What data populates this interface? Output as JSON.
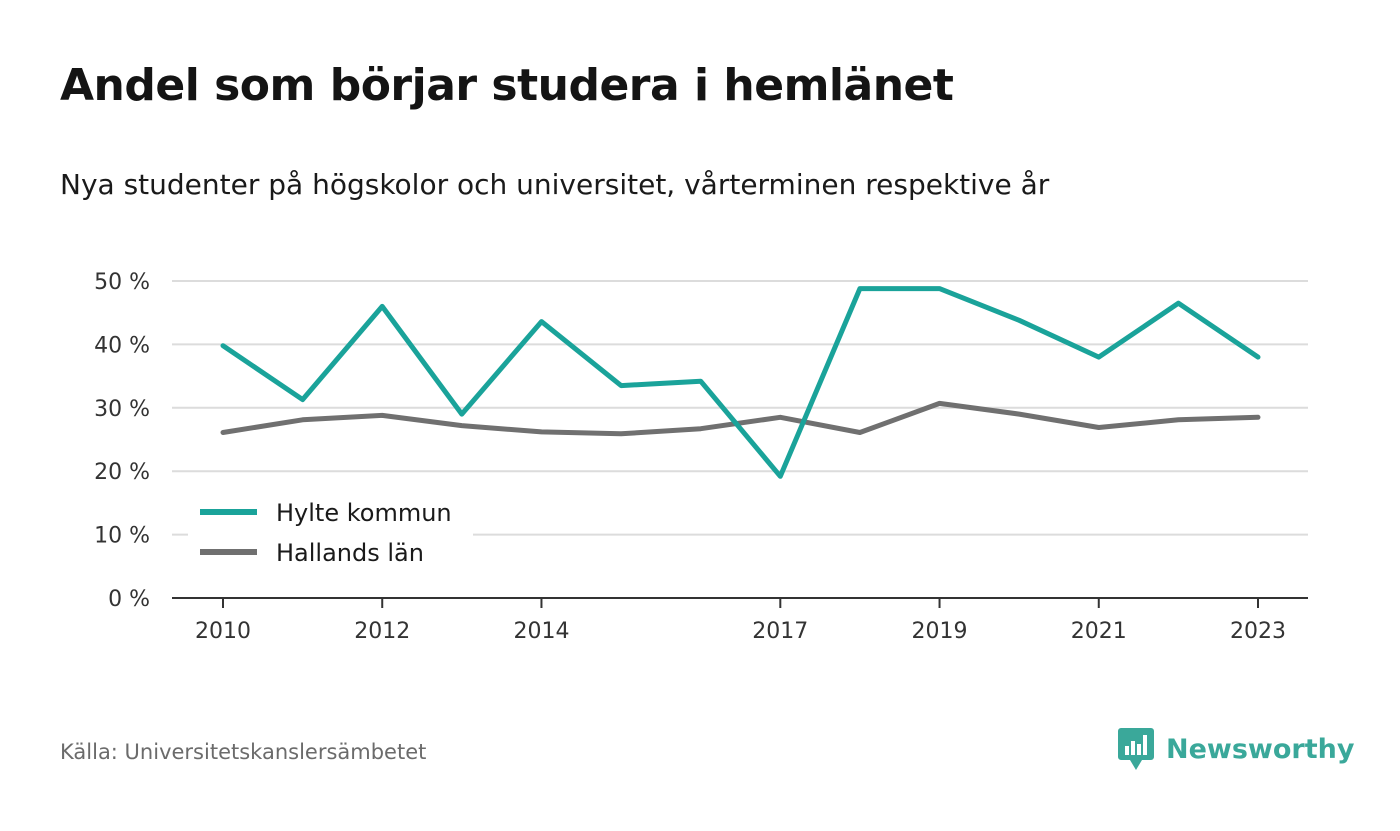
{
  "header": {
    "title": "Andel som börjar studera i hemlänet",
    "subtitle": "Nya studenter på högskolor och universitet, vårterminen respektive år"
  },
  "footer": {
    "source": "Källa: Universitetskanslersämbetet",
    "brand": "Newsworthy",
    "brand_icon": "chat-bar-chart-icon"
  },
  "colors": {
    "series_1": "#1aa39a",
    "series_2": "#707070",
    "grid": "#dcdcdc",
    "axis": "#333333",
    "brand": "#3aa89a"
  },
  "chart_data": {
    "type": "line",
    "x": [
      2010,
      2011,
      2012,
      2013,
      2014,
      2015,
      2016,
      2017,
      2018,
      2019,
      2020,
      2021,
      2022,
      2023
    ],
    "x_tick_values": [
      2010,
      2012,
      2014,
      2017,
      2019,
      2021,
      2023
    ],
    "x_tick_labels": [
      "2010",
      "2012",
      "2014",
      "2017",
      "2019",
      "2021",
      "2023"
    ],
    "y_ticks": [
      0,
      10,
      20,
      30,
      40,
      50
    ],
    "y_tick_labels": [
      "0 %",
      "10 %",
      "20 %",
      "30 %",
      "40 %",
      "50 %"
    ],
    "ylim": [
      0,
      50
    ],
    "grid": "horizontal",
    "legend_position": "bottom-left",
    "series": [
      {
        "name": "Hylte kommun",
        "color": "#1aa39a",
        "values": [
          39.8,
          31.3,
          46.0,
          29.0,
          43.6,
          33.5,
          34.2,
          19.2,
          48.8,
          48.8,
          43.8,
          38.0,
          46.5,
          38.0
        ]
      },
      {
        "name": "Hallands län",
        "color": "#707070",
        "values": [
          26.1,
          28.1,
          28.8,
          27.2,
          26.2,
          25.9,
          26.7,
          28.5,
          26.1,
          30.7,
          29.0,
          26.9,
          28.1,
          28.5
        ]
      }
    ]
  }
}
